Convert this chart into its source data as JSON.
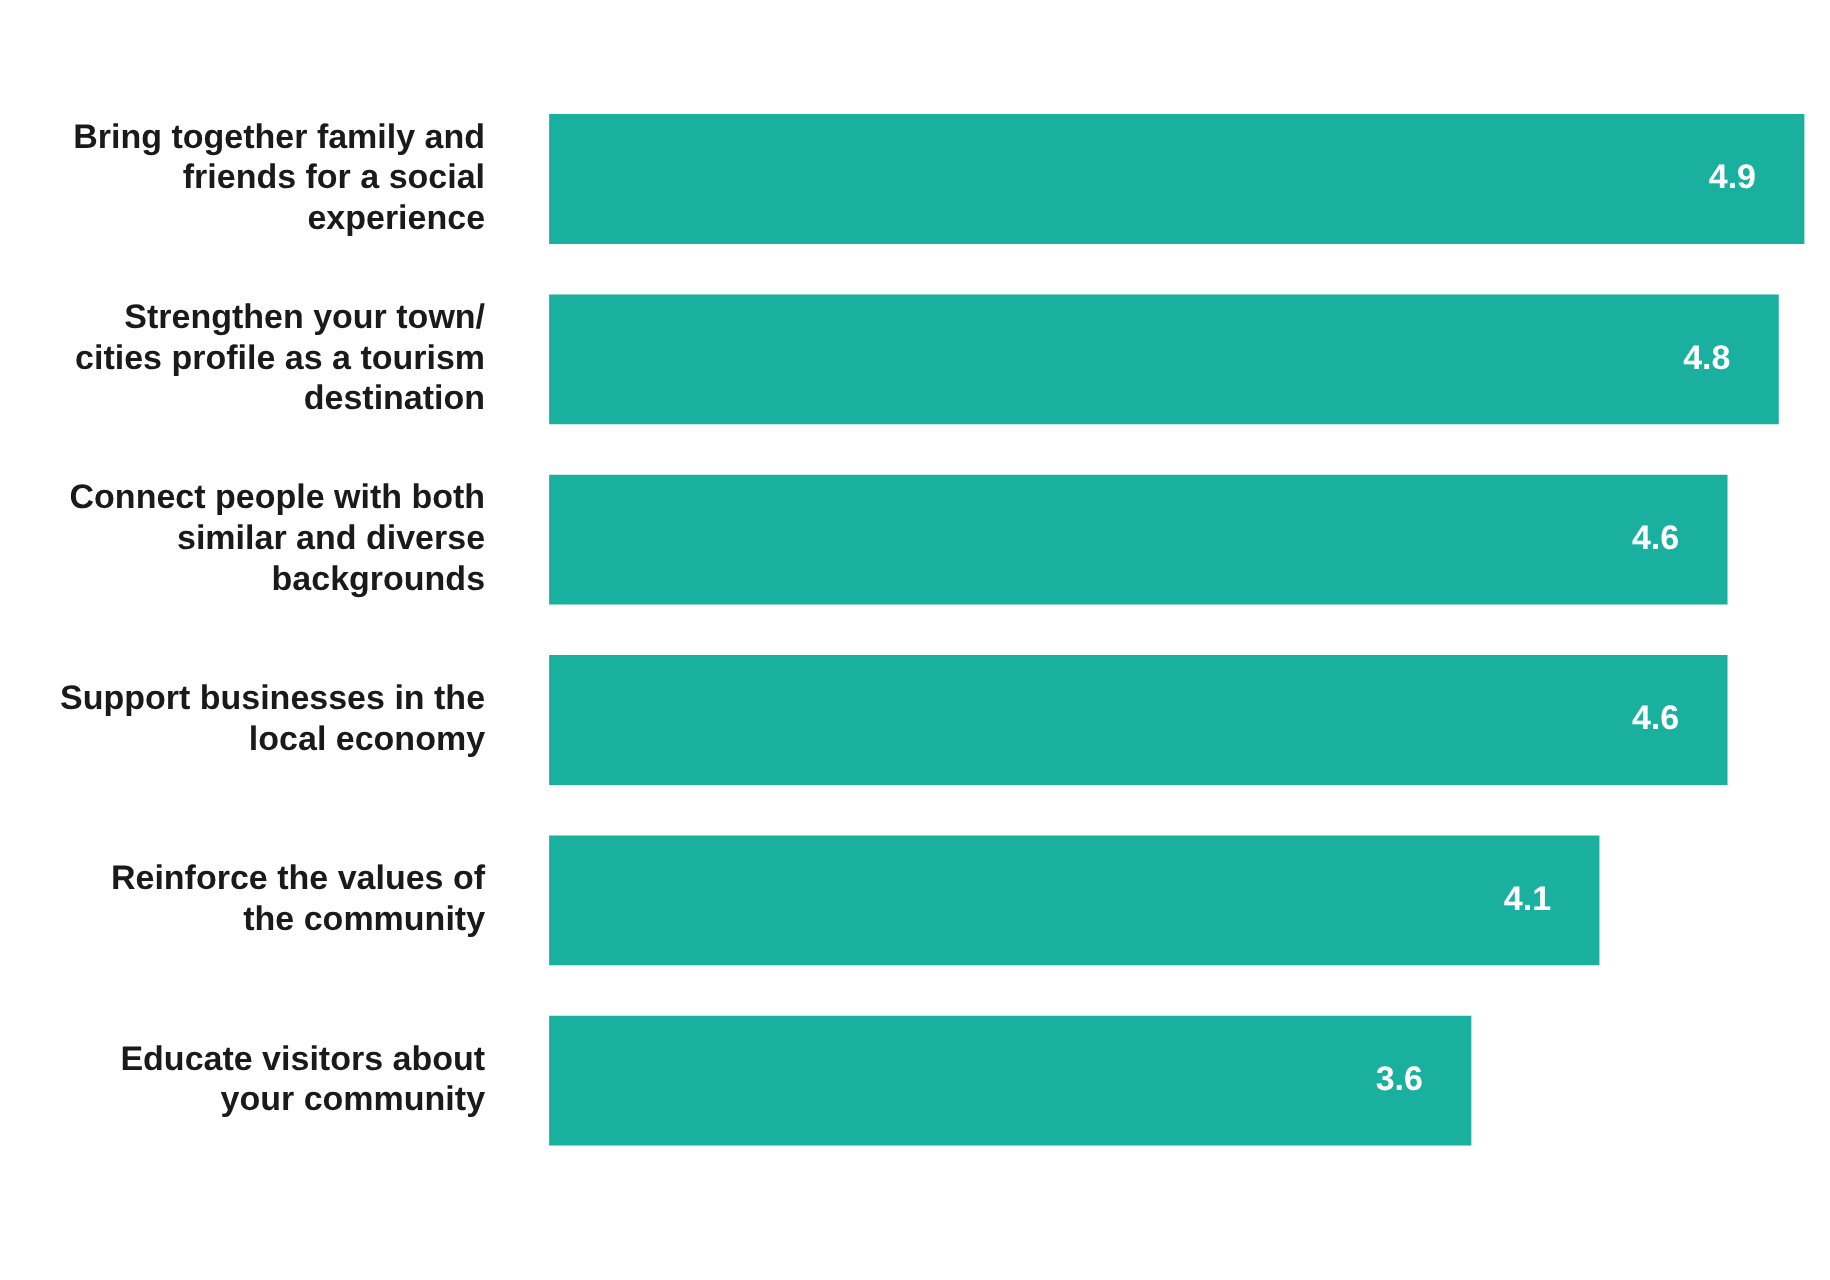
{
  "chart_data": {
    "type": "bar",
    "orientation": "horizontal",
    "categories": [
      "Bring together family and friends for a social experience",
      "Strengthen your town/ cities profile as a tourism destination",
      "Connect people with both similar and diverse backgrounds",
      "Support businesses in the local economy",
      "Reinforce the values of the community",
      "Educate visitors about your community"
    ],
    "values": [
      4.9,
      4.8,
      4.6,
      4.6,
      4.1,
      3.6
    ],
    "color": "#19b0a0",
    "data_labels": true
  }
}
